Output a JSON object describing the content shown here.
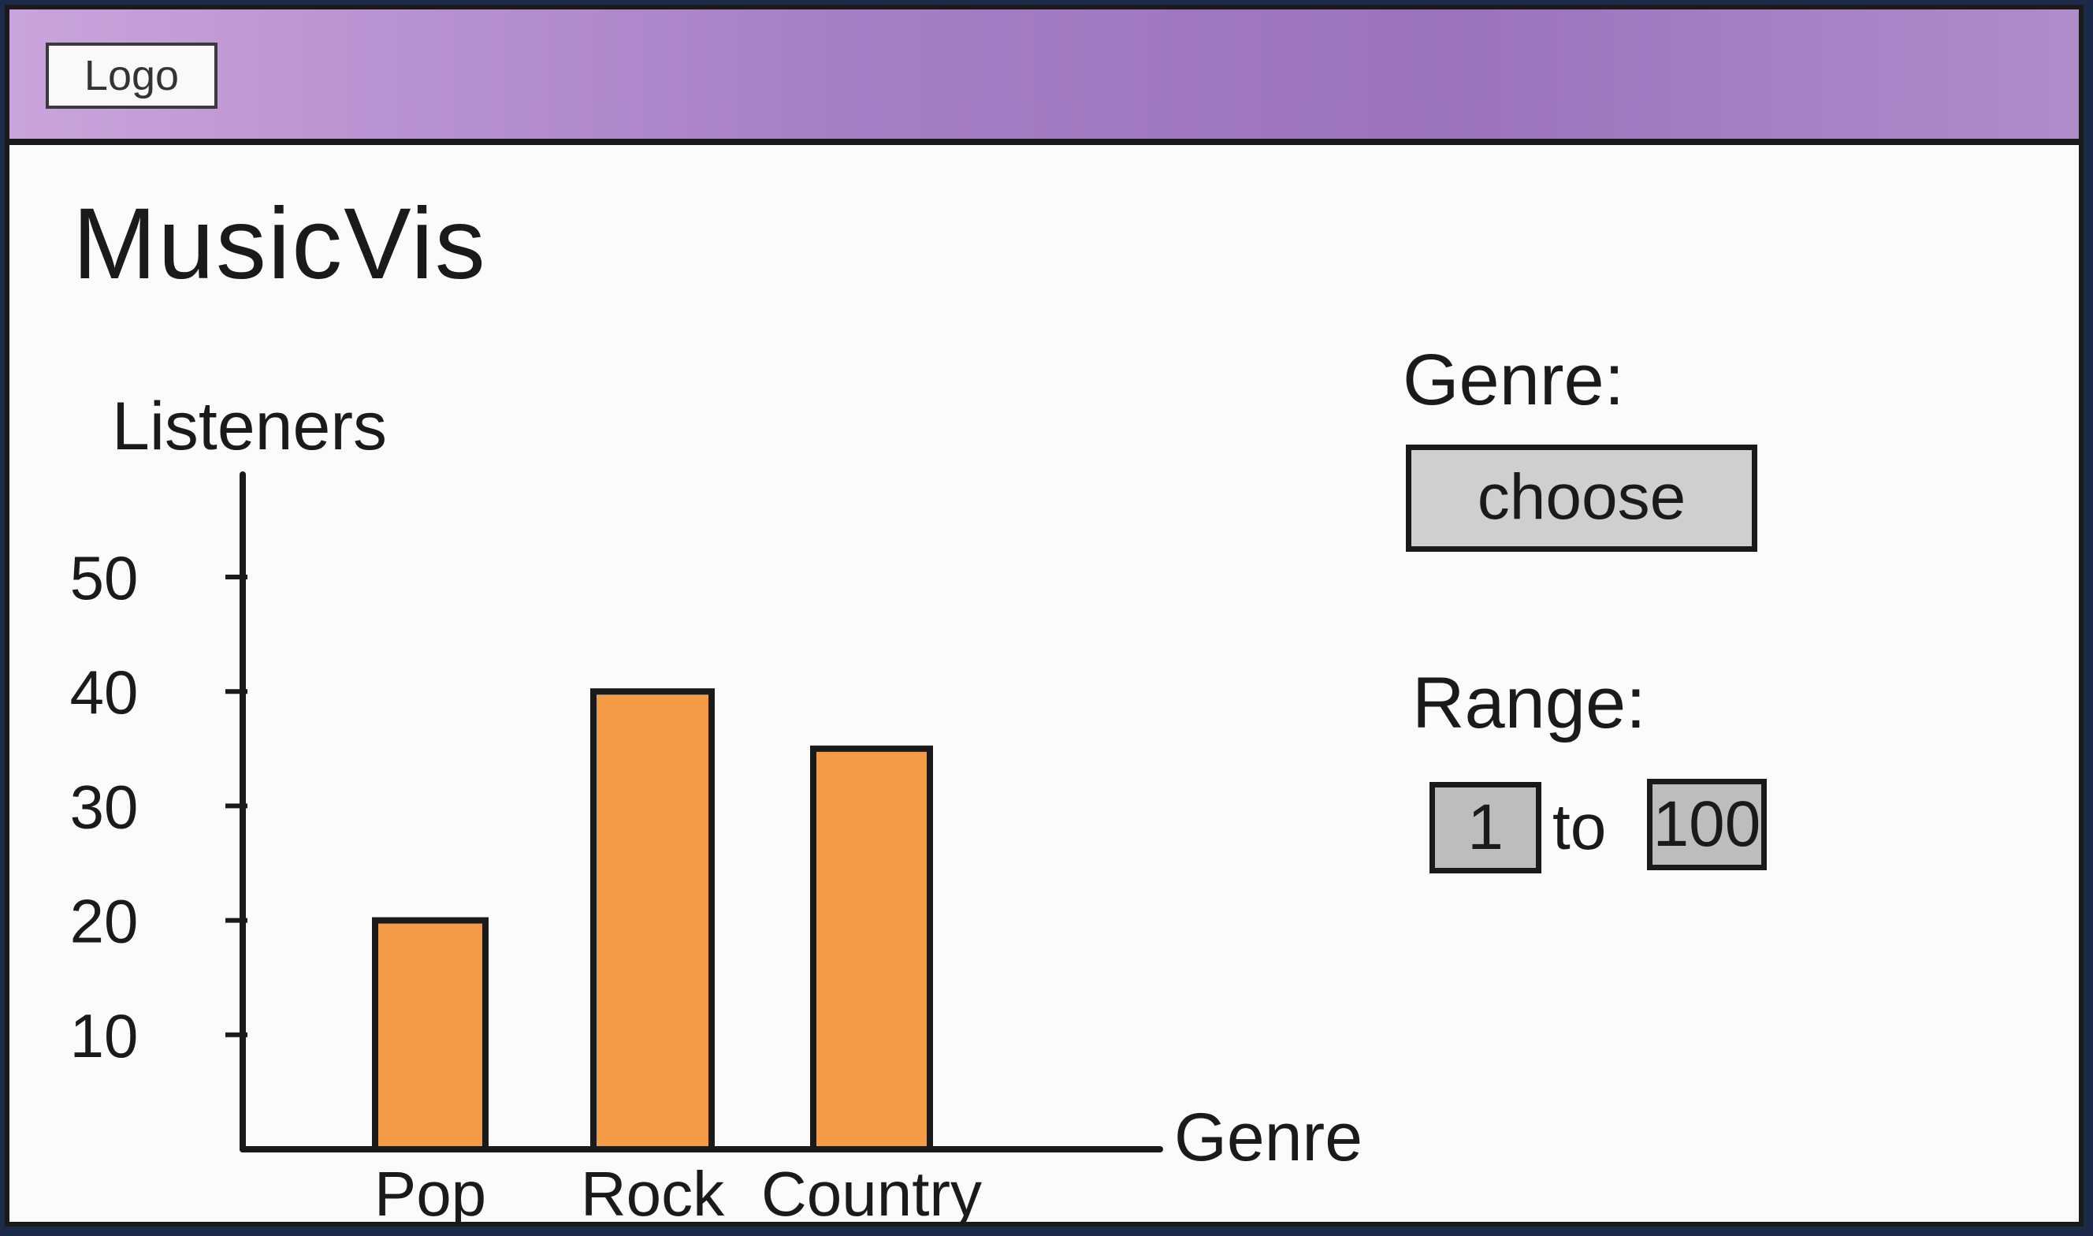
{
  "header": {
    "logo_text": "Logo",
    "background": "#a57fc4"
  },
  "app": {
    "title": "MusicVis"
  },
  "controls": {
    "genre_label": "Genre:",
    "genre_select_value": "choose",
    "range_label": "Range:",
    "range_from": "1",
    "range_to_word": "to",
    "range_to": "100"
  },
  "chart_data": {
    "type": "bar",
    "categories": [
      "Pop",
      "Rock",
      "Country"
    ],
    "values": [
      20,
      40,
      35
    ],
    "xlabel": "Genre",
    "ylabel": "Listeners",
    "yticks": [
      10,
      20,
      30,
      40,
      50
    ],
    "ylim": [
      0,
      50
    ],
    "grid": false,
    "bar_color": "#f59a45"
  }
}
